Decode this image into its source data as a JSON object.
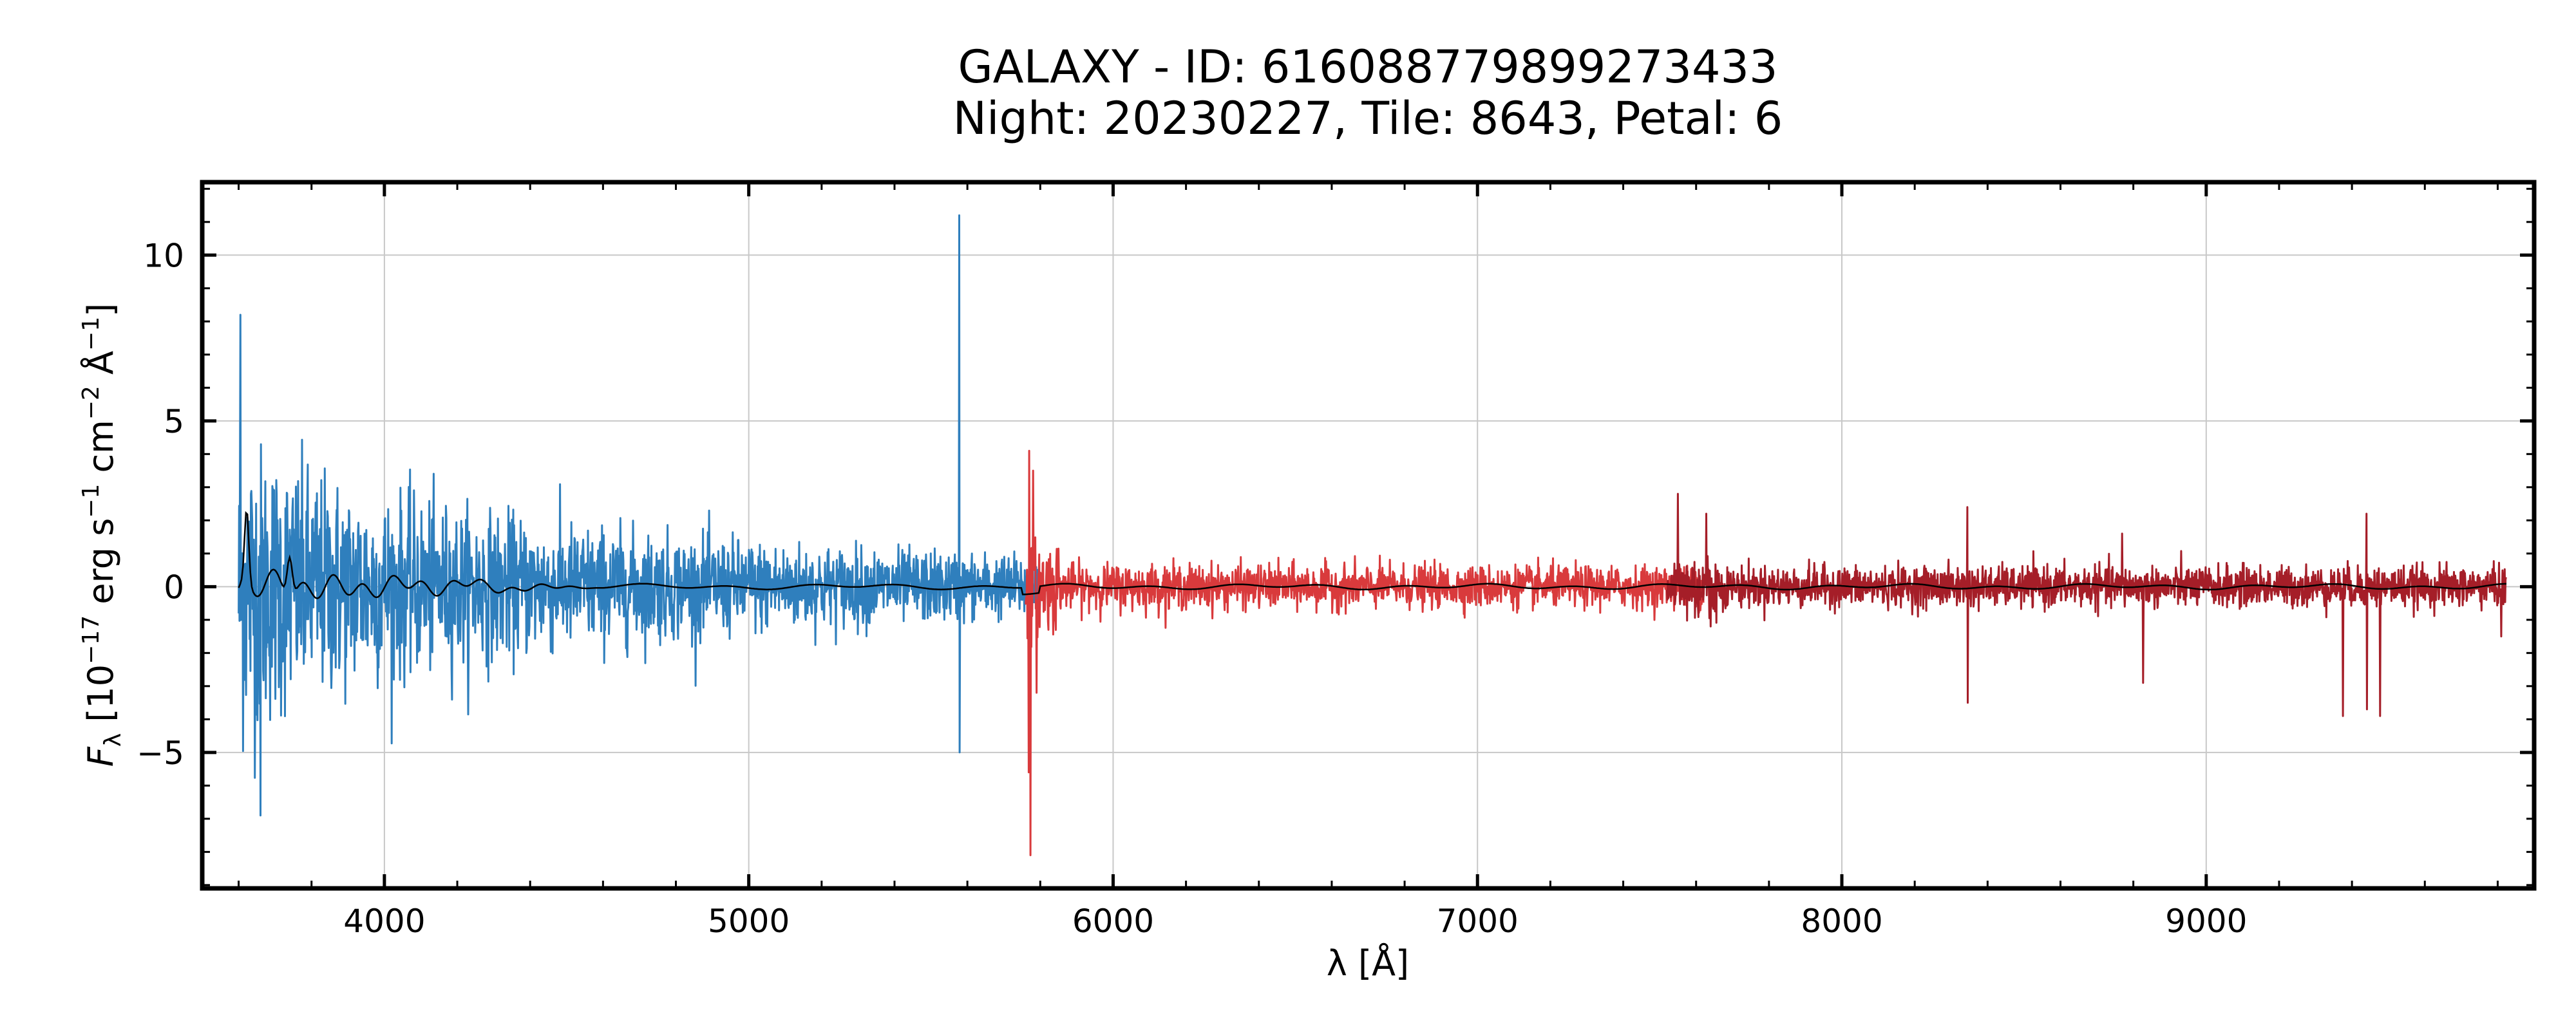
{
  "chart_data": {
    "type": "line",
    "title": "GALAXY - ID: 616088779899273433",
    "subtitle": "Night: 20230227, Tile: 8643, Petal: 6",
    "xlabel": "λ [Å]",
    "ylabel_parts": {
      "symbol": "F",
      "sub": "λ",
      "text1": " [10",
      "exp1": "−17",
      "text2": " erg s",
      "exp2": "−1",
      "text3": " cm",
      "exp3": "−2",
      "text4": " Å",
      "exp4": "−1",
      "text5": "]"
    },
    "xlim": [
      3500,
      9900
    ],
    "ylim": [
      -9.1,
      12.2
    ],
    "xticks": [
      4000,
      5000,
      6000,
      7000,
      8000,
      9000
    ],
    "xtick_labels": [
      "4000",
      "5000",
      "6000",
      "7000",
      "8000",
      "9000"
    ],
    "yticks": [
      -5,
      0,
      5,
      10
    ],
    "ytick_labels": [
      "−5",
      "0",
      "5",
      "10"
    ],
    "grid": true,
    "series": [
      {
        "arm": "b",
        "color": "#2f7fbd",
        "range": [
          3600,
          5800
        ],
        "noise_sigma_start": 2.6,
        "noise_sigma_end": 0.45,
        "spikes": [
          [
            5578,
            11.2
          ],
          [
            5579,
            -5.0
          ],
          [
            3605,
            8.2
          ],
          [
            3660,
            -6.9
          ]
        ]
      },
      {
        "arm": "r",
        "color": "#d93a3c",
        "range": [
          5760,
          7620
        ],
        "noise_sigma_start": 0.35,
        "noise_sigma_end": 0.3,
        "spikes": [
          [
            5770,
            4.1
          ],
          [
            5768,
            -5.6
          ],
          [
            5773,
            -8.1
          ],
          [
            5780,
            3.5
          ],
          [
            5790,
            -3.2
          ]
        ]
      },
      {
        "arm": "z",
        "color": "#a51e28",
        "range": [
          7520,
          9824
        ],
        "noise_sigma_start": 0.3,
        "noise_sigma_end": 0.3,
        "spikes": [
          [
            7550,
            2.8
          ],
          [
            7628,
            2.2
          ],
          [
            7640,
            -1.2
          ],
          [
            8345,
            2.4
          ],
          [
            8346,
            -3.5
          ],
          [
            8770,
            1.6
          ],
          [
            8827,
            -2.9
          ],
          [
            9375,
            2.6
          ],
          [
            9376,
            -3.9
          ],
          [
            9440,
            2.2
          ],
          [
            9441,
            -3.7
          ],
          [
            9478,
            -3.9
          ],
          [
            9810,
            -1.5
          ]
        ]
      }
    ],
    "model": {
      "color": "#000000",
      "description_values": "smooth fit near 0, ~2.4 peak at 3620, ~1.7 at 3740"
    }
  }
}
